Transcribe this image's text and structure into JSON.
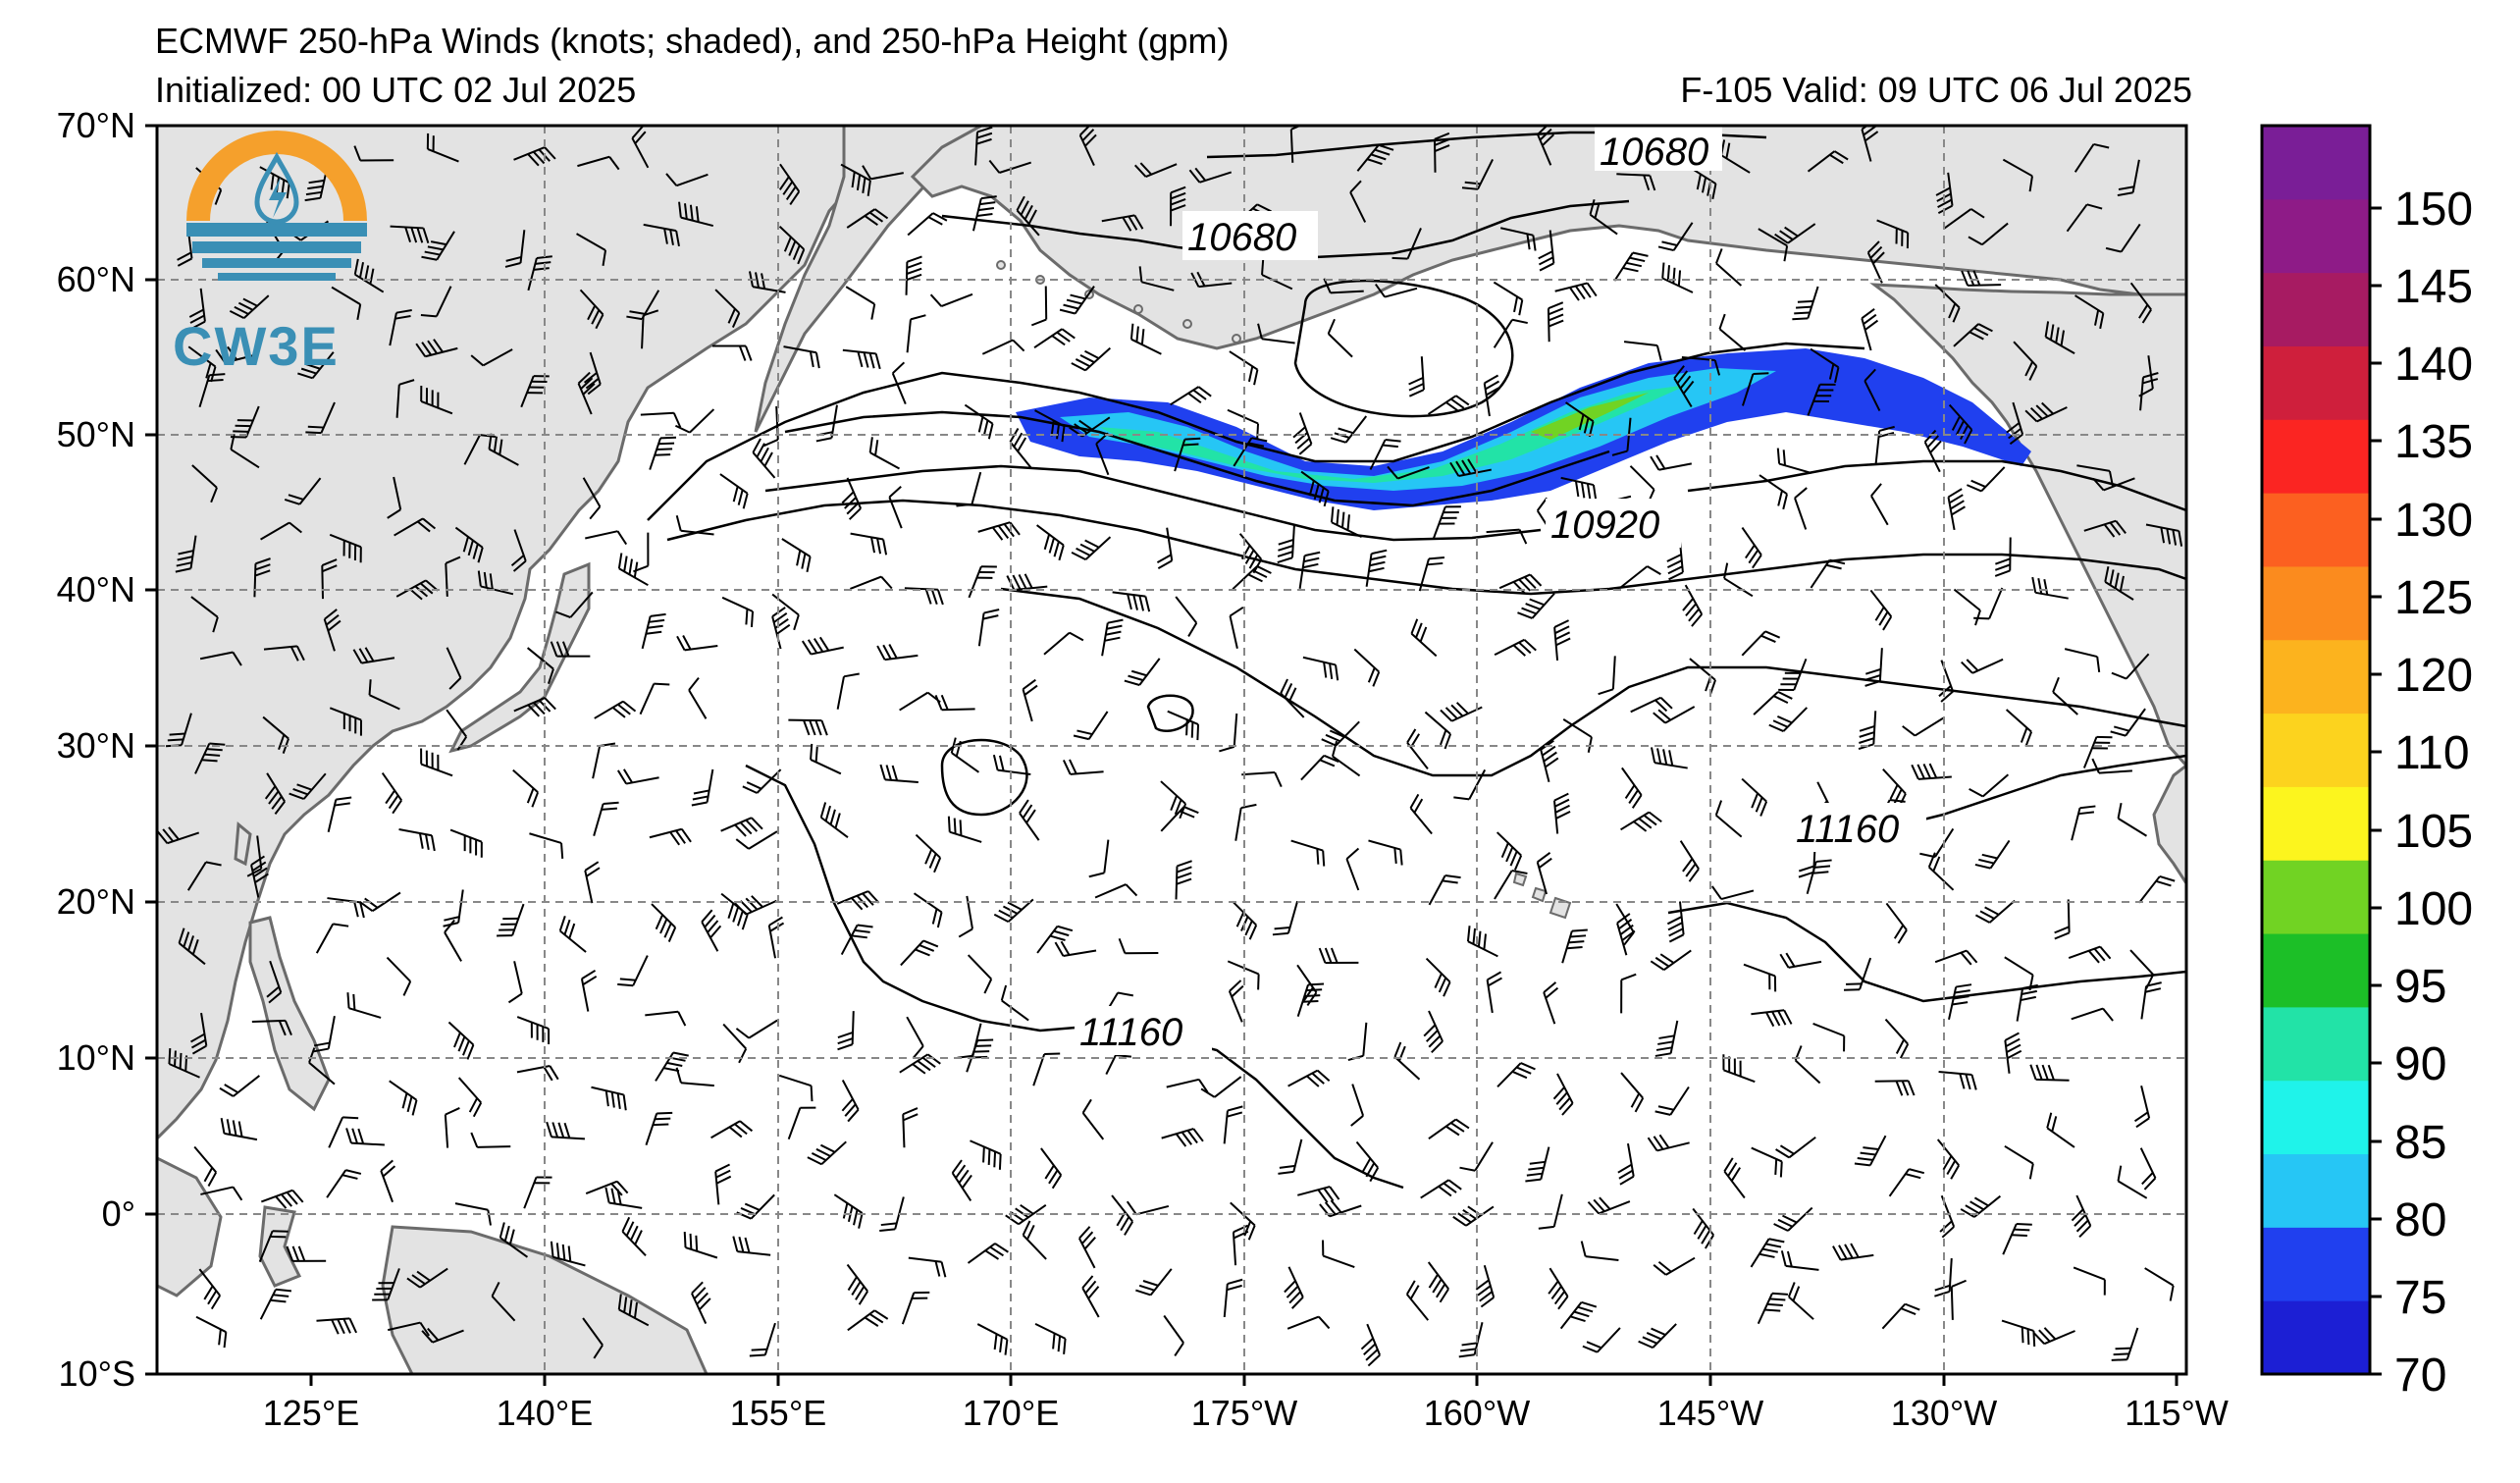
{
  "title": {
    "line1": "ECMWF 250-hPa Winds (knots; shaded), and 250-hPa Height (gpm)",
    "line2": "Initialized: 00 UTC 02 Jul 2025",
    "valid": "F-105  Valid: 09 UTC 06 Jul 2025"
  },
  "logo": {
    "text": "CW3E",
    "icon": "water-drop-lightning-icon"
  },
  "axes": {
    "lat_labels": [
      "70°N",
      "60°N",
      "50°N",
      "40°N",
      "30°N",
      "20°N",
      "10°N",
      "0°",
      "10°S"
    ],
    "lon_labels": [
      "125°E",
      "140°E",
      "155°E",
      "170°E",
      "175°W",
      "160°W",
      "145°W",
      "130°W",
      "115°W"
    ]
  },
  "contour_labels": [
    "10680",
    "10680",
    "10920",
    "11160",
    "11160"
  ],
  "colorbar": {
    "labels": [
      "70",
      "75",
      "80",
      "85",
      "90",
      "95",
      "100",
      "105",
      "110",
      "120",
      "125",
      "130",
      "135",
      "140",
      "145",
      "150"
    ],
    "colors": [
      "#1c1fd4",
      "#2040ef",
      "#26c6f5",
      "#1ff3ea",
      "#22e3a7",
      "#1cbf27",
      "#71d323",
      "#fcf51e",
      "#fcd31e",
      "#fcb31e",
      "#fb8b1e",
      "#fc6020",
      "#fb2522",
      "#cf1f3c",
      "#a71b62",
      "#8e1b87",
      "#7a1e97"
    ]
  }
}
